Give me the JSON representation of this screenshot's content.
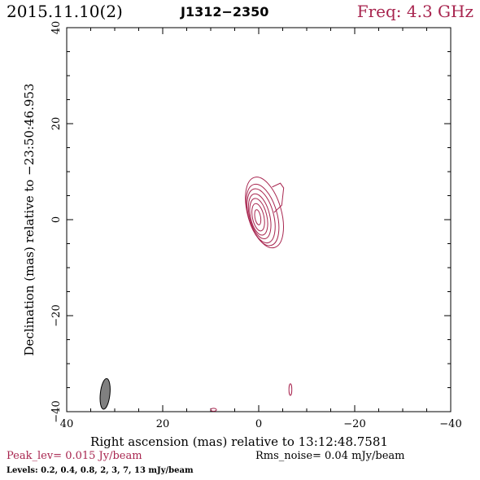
{
  "header": {
    "date": "2015.11.10(2)",
    "source": "J1312−2350",
    "freq": "Freq: 4.3 GHz"
  },
  "footer": {
    "peak": "Peak_lev=  0.015 Jy/beam",
    "rms": "Rms_noise= 0.04 mJy/beam",
    "levels": "Levels: 0.2,  0.4,  0.8,    2,    3,    7,   13  mJy/beam"
  },
  "colors": {
    "contour": "#a8254f",
    "beam_fill": "#808080",
    "axis": "#000000"
  },
  "chart_data": {
    "type": "contour",
    "xlabel": "Right ascension (mas) relative to 13:12:48.7581",
    "ylabel": "Declination (mas) relative to −23:50:46.953",
    "xlim": [
      40,
      -40
    ],
    "ylim": [
      -40,
      40
    ],
    "xticks": [
      40,
      20,
      0,
      -20,
      -40
    ],
    "yticks": [
      -40,
      -20,
      0,
      20,
      40
    ],
    "xtick_labels": [
      "40",
      "20",
      "0",
      "−20",
      "−40"
    ],
    "ytick_labels": [
      "−40",
      "−20",
      "0",
      "20",
      "40"
    ],
    "contour_levels_mJy": [
      0.2,
      0.4,
      0.8,
      2,
      3,
      7,
      13
    ],
    "peak_Jy_per_beam": 0.015,
    "rms_mJy_per_beam": 0.04,
    "core": {
      "x": 0.2,
      "y": 0.5
    },
    "contours": [
      {
        "level": 0.2,
        "cx": -1.2,
        "cy": 1.5,
        "rx": 3.5,
        "ry": 7.6,
        "angle": -16
      },
      {
        "level": 0.4,
        "cx": -0.8,
        "cy": 1.0,
        "rx": 3.0,
        "ry": 6.6,
        "angle": -16
      },
      {
        "level": 0.8,
        "cx": -0.5,
        "cy": 0.8,
        "rx": 2.6,
        "ry": 5.8,
        "angle": -15
      },
      {
        "level": 2,
        "cx": -0.2,
        "cy": 0.7,
        "rx": 2.1,
        "ry": 4.8,
        "angle": -14
      },
      {
        "level": 3,
        "cx": 0.0,
        "cy": 0.6,
        "rx": 1.7,
        "ry": 3.9,
        "angle": -13
      },
      {
        "level": 7,
        "cx": 0.1,
        "cy": 0.5,
        "rx": 1.2,
        "ry": 2.9,
        "angle": -12
      },
      {
        "level": 13,
        "cx": 0.2,
        "cy": 0.5,
        "rx": 0.6,
        "ry": 1.6,
        "angle": -10
      }
    ],
    "jet_lobe": [
      [
        -2.8,
        6.8
      ],
      [
        -4.5,
        7.6
      ],
      [
        -5.2,
        6.6
      ],
      [
        -4.8,
        3.0
      ],
      [
        -3.2,
        1.5
      ]
    ],
    "extra_components": [
      {
        "cx": -6.6,
        "cy": -35.4,
        "rx": 0.3,
        "ry": 1.2
      },
      {
        "cx": 9.4,
        "cy": -39.6,
        "rx": 0.6,
        "ry": 0.3
      }
    ],
    "beam": {
      "cx": 32.0,
      "cy": -36.3,
      "rx": 1.0,
      "ry": 3.2,
      "angle": 6
    }
  }
}
